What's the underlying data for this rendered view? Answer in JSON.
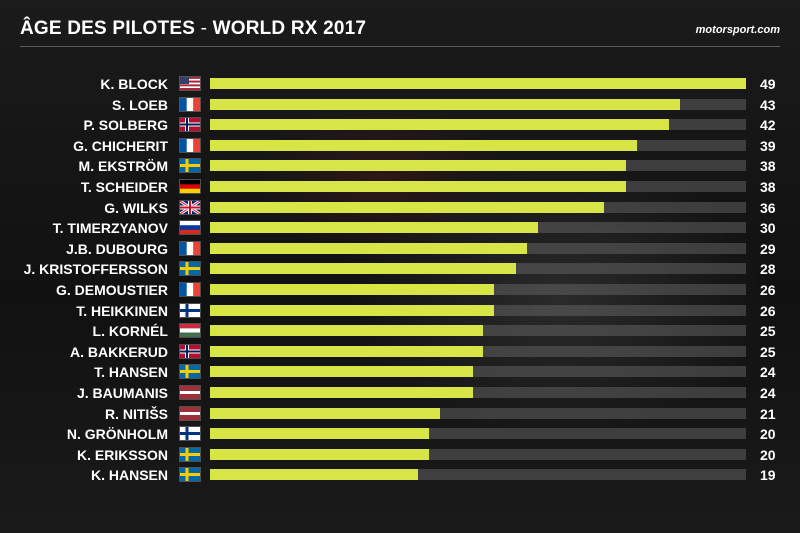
{
  "header": {
    "title_bold": "ÂGE DES PILOTES",
    "title_sep": " - ",
    "title_rest": "WORLD RX 2017",
    "brand": "motorsport.com"
  },
  "colors": {
    "bar": "#d7e646",
    "track": "#4a4a4a",
    "background": "#141414"
  },
  "chart_data": {
    "type": "bar",
    "orientation": "horizontal",
    "title": "ÂGE DES PILOTES - WORLD RX 2017",
    "xlim": [
      0,
      49
    ],
    "categories": [
      "K. BLOCK",
      "S. LOEB",
      "P. SOLBERG",
      "G. CHICHERIT",
      "M. EKSTRÖM",
      "T. SCHEIDER",
      "G. WILKS",
      "T. TIMERZYANOV",
      "J.B. DUBOURG",
      "J. KRISTOFFERSSON",
      "G. DEMOUSTIER",
      "T. HEIKKINEN",
      "L. KORNÉL",
      "A. BAKKERUD",
      "T. HANSEN",
      "J. BAUMANIS",
      "R. NITIŠS",
      "N. GRÖNHOLM",
      "K. ERIKSSON",
      "K. HANSEN"
    ],
    "values": [
      49,
      43,
      42,
      39,
      38,
      38,
      36,
      30,
      29,
      28,
      26,
      26,
      25,
      25,
      24,
      24,
      21,
      20,
      20,
      19
    ],
    "flags": [
      "usa-flag-icon",
      "france-flag-icon",
      "norway-flag-icon",
      "france-flag-icon",
      "sweden-flag-icon",
      "germany-flag-icon",
      "uk-flag-icon",
      "russia-flag-icon",
      "france-flag-icon",
      "sweden-flag-icon",
      "france-flag-icon",
      "finland-flag-icon",
      "hungary-flag-icon",
      "norway-flag-icon",
      "sweden-flag-icon",
      "latvia-flag-icon",
      "latvia-flag-icon",
      "finland-flag-icon",
      "sweden-flag-icon",
      "sweden-flag-icon"
    ],
    "grid": false
  }
}
